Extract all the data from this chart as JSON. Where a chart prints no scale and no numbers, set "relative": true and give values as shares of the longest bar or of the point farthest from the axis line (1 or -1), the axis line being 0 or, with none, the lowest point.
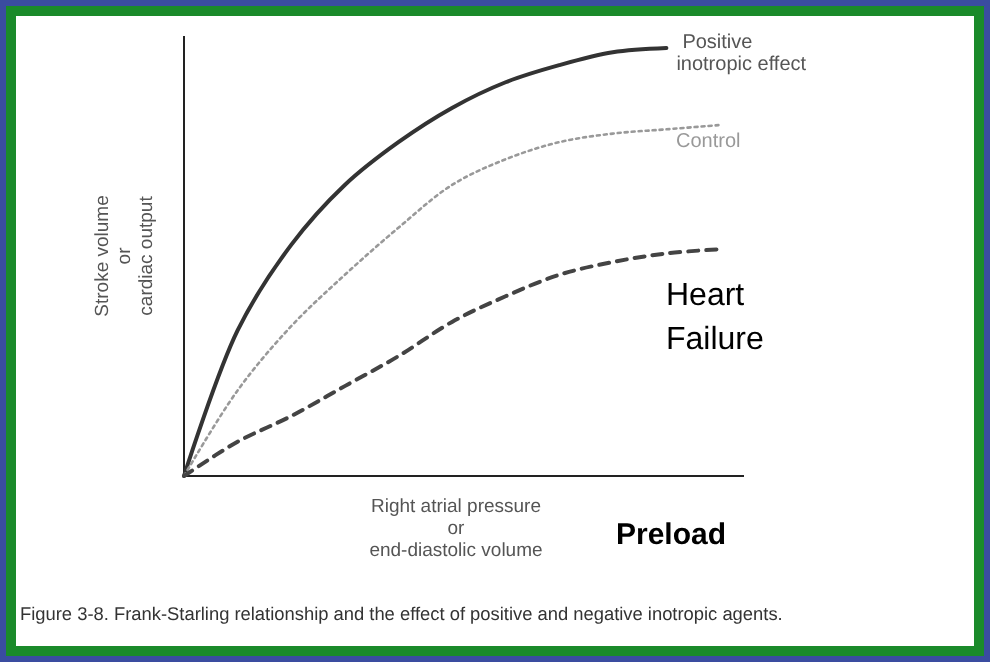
{
  "chart_data": {
    "type": "line",
    "relative": true,
    "xlabel": "Right atrial pressure\nor\nend-diastolic volume",
    "ylabel": "Stroke volume\nor\ncardiac output",
    "categories": [
      null,
      null,
      null,
      null,
      null,
      null,
      null,
      null,
      null,
      null,
      null
    ],
    "series": [
      {
        "name": "Positive\ninotropic effect",
        "color": "#333333",
        "line_style": "solid",
        "values": [
          0,
          0.34,
          0.54,
          0.68,
          0.78,
          0.86,
          0.92,
          0.96,
          0.99,
          1.0,
          null
        ]
      },
      {
        "name": "Control",
        "color": "#999999",
        "line_style": "dotted",
        "values": [
          0,
          0.2,
          0.35,
          0.47,
          0.58,
          0.68,
          0.74,
          0.78,
          0.8,
          0.81,
          0.82
        ]
      },
      {
        "name": "Heart\nFailure",
        "color": "#444444",
        "line_style": "dashed",
        "values": [
          0,
          0.08,
          0.14,
          0.21,
          0.28,
          0.36,
          0.42,
          0.47,
          0.5,
          0.52,
          0.53
        ]
      }
    ],
    "annotations": [
      "Preload",
      "Figure 3-8. Frank-Starling relationship and the effect of positive and negative inotropic agents."
    ]
  }
}
